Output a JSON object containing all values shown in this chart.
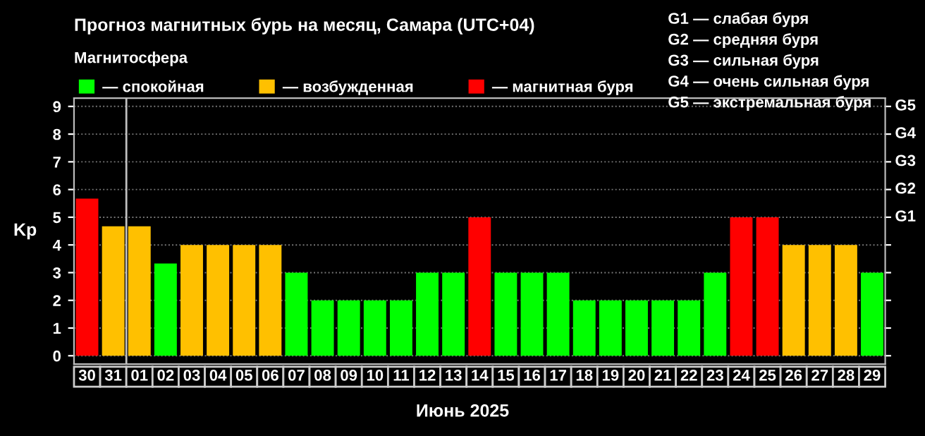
{
  "chart_data": {
    "type": "bar",
    "title": "Прогноз магнитных бурь на месяц, Самара (UTC+04)",
    "xlabel": "Июнь 2025",
    "ylabel": "Kp",
    "legend_title": "Магнитосфера",
    "legend": "top left",
    "categories": [
      "30",
      "31",
      "01",
      "02",
      "03",
      "04",
      "05",
      "06",
      "07",
      "08",
      "09",
      "10",
      "11",
      "12",
      "13",
      "14",
      "15",
      "16",
      "17",
      "18",
      "19",
      "20",
      "21",
      "22",
      "23",
      "24",
      "25",
      "26",
      "27",
      "28",
      "29"
    ],
    "series": [
      {
        "name": "— спокойная",
        "color": "#00ff00",
        "values": [
          null,
          null,
          null,
          3.33,
          null,
          null,
          null,
          null,
          3,
          2,
          2,
          2,
          2,
          3,
          3,
          null,
          3,
          3,
          3,
          2,
          2,
          2,
          2,
          2,
          3,
          null,
          null,
          null,
          null,
          null,
          3
        ]
      },
      {
        "name": "— возбужденная",
        "color": "#ffc000",
        "values": [
          null,
          4.67,
          4.67,
          null,
          4,
          4,
          4,
          4,
          null,
          null,
          null,
          null,
          null,
          null,
          null,
          null,
          null,
          null,
          null,
          null,
          null,
          null,
          null,
          null,
          null,
          null,
          null,
          4,
          4,
          4,
          null
        ]
      },
      {
        "name": "— магнитная буря",
        "color": "#ff0000",
        "values": [
          5.67,
          null,
          null,
          null,
          null,
          null,
          null,
          null,
          null,
          null,
          null,
          null,
          null,
          null,
          null,
          5,
          null,
          null,
          null,
          null,
          null,
          null,
          null,
          null,
          null,
          5,
          5,
          null,
          null,
          null,
          null
        ]
      }
    ],
    "ylim": [
      -0.3,
      9.3
    ],
    "yticks": [
      0,
      1,
      2,
      3,
      4,
      5,
      6,
      7,
      8,
      9
    ],
    "grid": "y",
    "ref_lines": [
      {
        "axis": "x",
        "value": "01",
        "color": "#c0c0c0"
      },
      {
        "axis": "y",
        "value": 5,
        "label": "G1"
      },
      {
        "axis": "y",
        "value": 6,
        "label": "G2"
      },
      {
        "axis": "y",
        "value": 7,
        "label": "G3"
      },
      {
        "axis": "y",
        "value": 8,
        "label": "G4"
      },
      {
        "axis": "y",
        "value": 9,
        "label": "G5"
      }
    ],
    "annotations": [
      "G1 — слабая буря",
      "G2 — средняя буря",
      "G3 — сильная буря",
      "G4 — очень сильная буря",
      "G5 — экстремальная буря"
    ]
  }
}
